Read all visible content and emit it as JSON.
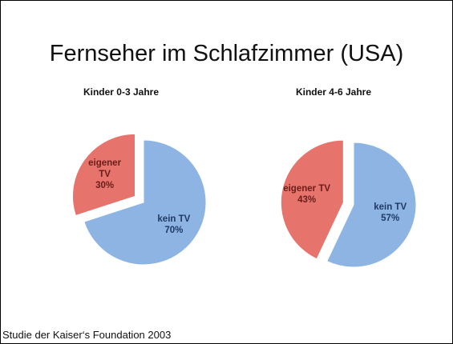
{
  "title": "Fernseher im Schlafzimmer (USA)",
  "footer": "Studie der Kaiser‘s Foundation 2003",
  "chart_data": [
    {
      "type": "pie",
      "title": "Kinder 0-3 Jahre",
      "categories": [
        "kein TV",
        "eigener TV"
      ],
      "values": [
        70,
        30
      ],
      "value_labels": [
        "70%",
        "30%"
      ],
      "colors": [
        "#8db4e2",
        "#e6736c"
      ]
    },
    {
      "type": "pie",
      "title": "Kinder 4-6 Jahre",
      "categories": [
        "kein TV",
        "eigener TV"
      ],
      "values": [
        57,
        43
      ],
      "value_labels": [
        "57%",
        "43%"
      ],
      "colors": [
        "#8db4e2",
        "#e6736c"
      ]
    }
  ]
}
